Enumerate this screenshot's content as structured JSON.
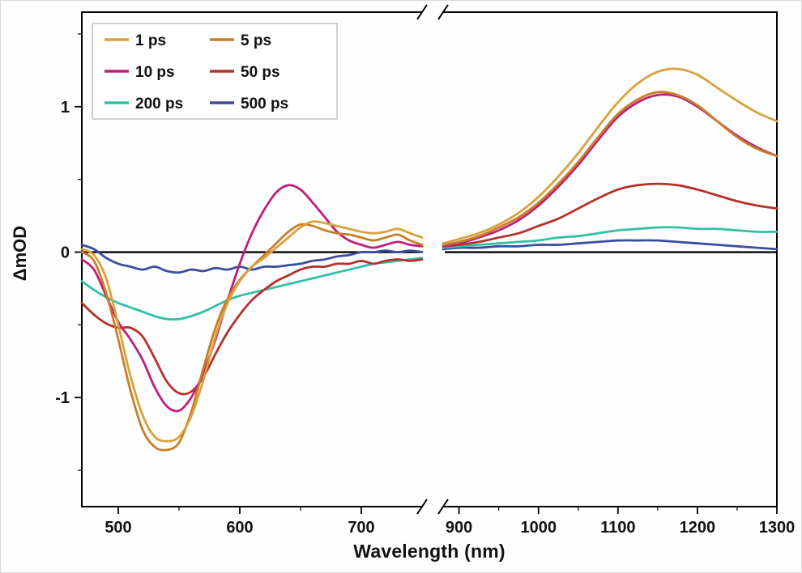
{
  "chart_data": {
    "type": "line",
    "title": "",
    "xlabel": "Wavelength (nm)",
    "ylabel": "ΔmOD",
    "ylim": [
      -1.75,
      1.65
    ],
    "y_major_ticks": [
      -1,
      0,
      1
    ],
    "y_minor_ticks": [
      -1.5,
      -0.5,
      0.5,
      1.5
    ],
    "zero_line": true,
    "axis_break": true,
    "legend": {
      "position": "top-left",
      "columns": 2
    },
    "panels": [
      {
        "xlim": [
          470,
          750
        ],
        "x_major_ticks": [
          500,
          600,
          700
        ],
        "x_minor_ticks": [
          550,
          650
        ],
        "x": [
          470,
          480,
          490,
          500,
          510,
          520,
          530,
          540,
          550,
          560,
          570,
          580,
          590,
          600,
          610,
          620,
          630,
          640,
          650,
          660,
          670,
          680,
          690,
          700,
          710,
          720,
          730,
          740,
          750
        ]
      },
      {
        "xlim": [
          880,
          1300
        ],
        "x_major_ticks": [
          900,
          1000,
          1100,
          1200,
          1300
        ],
        "x_minor_ticks": [
          950,
          1050,
          1150,
          1250
        ],
        "x": [
          880,
          900,
          925,
          950,
          975,
          1000,
          1025,
          1050,
          1075,
          1100,
          1125,
          1150,
          1175,
          1200,
          1225,
          1250,
          1275,
          1300
        ]
      }
    ],
    "series": [
      {
        "name": "1 ps",
        "color": "#D9A13C",
        "y_left": [
          0.02,
          -0.02,
          -0.18,
          -0.5,
          -0.85,
          -1.12,
          -1.27,
          -1.3,
          -1.27,
          -1.13,
          -0.88,
          -0.58,
          -0.35,
          -0.2,
          -0.1,
          -0.04,
          0.03,
          0.1,
          0.17,
          0.21,
          0.2,
          0.18,
          0.16,
          0.14,
          0.13,
          0.14,
          0.16,
          0.13,
          0.1
        ],
        "y_right": [
          0.06,
          0.09,
          0.13,
          0.19,
          0.27,
          0.38,
          0.52,
          0.68,
          0.86,
          1.03,
          1.16,
          1.24,
          1.26,
          1.22,
          1.13,
          1.04,
          0.96,
          0.9
        ]
      },
      {
        "name": "5 ps",
        "color": "#C87E28",
        "y_left": [
          0.0,
          -0.06,
          -0.28,
          -0.6,
          -0.95,
          -1.22,
          -1.34,
          -1.36,
          -1.31,
          -1.1,
          -0.8,
          -0.52,
          -0.32,
          -0.19,
          -0.1,
          -0.02,
          0.06,
          0.14,
          0.19,
          0.18,
          0.15,
          0.13,
          0.12,
          0.1,
          0.08,
          0.1,
          0.12,
          0.08,
          0.05
        ],
        "y_right": [
          0.05,
          0.07,
          0.11,
          0.17,
          0.24,
          0.34,
          0.47,
          0.62,
          0.79,
          0.95,
          1.05,
          1.1,
          1.08,
          1.01,
          0.9,
          0.79,
          0.71,
          0.66
        ]
      },
      {
        "name": "10 ps",
        "color": "#BE1E78",
        "y_left": [
          -0.05,
          -0.12,
          -0.3,
          -0.48,
          -0.6,
          -0.74,
          -0.93,
          -1.06,
          -1.09,
          -1.0,
          -0.83,
          -0.6,
          -0.33,
          -0.08,
          0.13,
          0.29,
          0.41,
          0.46,
          0.43,
          0.34,
          0.24,
          0.14,
          0.08,
          0.05,
          0.03,
          0.05,
          0.07,
          0.05,
          0.04
        ],
        "y_right": [
          0.04,
          0.06,
          0.1,
          0.15,
          0.22,
          0.32,
          0.45,
          0.6,
          0.77,
          0.93,
          1.03,
          1.08,
          1.07,
          1.0,
          0.9,
          0.8,
          0.72,
          0.66
        ]
      },
      {
        "name": "50 ps",
        "color": "#B5312B",
        "y_left": [
          -0.35,
          -0.43,
          -0.49,
          -0.52,
          -0.52,
          -0.58,
          -0.73,
          -0.89,
          -0.97,
          -0.96,
          -0.86,
          -0.7,
          -0.55,
          -0.43,
          -0.33,
          -0.26,
          -0.2,
          -0.16,
          -0.12,
          -0.1,
          -0.1,
          -0.08,
          -0.08,
          -0.06,
          -0.08,
          -0.06,
          -0.05,
          -0.06,
          -0.05
        ],
        "y_right": [
          0.04,
          0.05,
          0.07,
          0.1,
          0.13,
          0.18,
          0.23,
          0.3,
          0.37,
          0.43,
          0.46,
          0.47,
          0.46,
          0.43,
          0.39,
          0.35,
          0.32,
          0.3
        ]
      },
      {
        "name": "200 ps",
        "color": "#34BFA4",
        "y_left": [
          -0.2,
          -0.26,
          -0.31,
          -0.35,
          -0.38,
          -0.41,
          -0.44,
          -0.46,
          -0.46,
          -0.44,
          -0.41,
          -0.37,
          -0.33,
          -0.3,
          -0.28,
          -0.26,
          -0.24,
          -0.22,
          -0.2,
          -0.18,
          -0.16,
          -0.14,
          -0.12,
          -0.1,
          -0.08,
          -0.07,
          -0.06,
          -0.05,
          -0.04
        ],
        "y_right": [
          0.03,
          0.04,
          0.05,
          0.06,
          0.07,
          0.08,
          0.1,
          0.11,
          0.13,
          0.15,
          0.16,
          0.17,
          0.17,
          0.16,
          0.16,
          0.15,
          0.14,
          0.14
        ]
      },
      {
        "name": "500 ps",
        "color": "#3A4DA0",
        "y_left": [
          0.05,
          0.02,
          -0.04,
          -0.08,
          -0.1,
          -0.12,
          -0.1,
          -0.13,
          -0.14,
          -0.12,
          -0.13,
          -0.11,
          -0.12,
          -0.1,
          -0.12,
          -0.1,
          -0.1,
          -0.09,
          -0.08,
          -0.06,
          -0.05,
          -0.03,
          -0.02,
          0.0,
          0.0,
          0.01,
          0.0,
          0.01,
          0.0
        ],
        "y_right": [
          0.02,
          0.03,
          0.03,
          0.04,
          0.04,
          0.05,
          0.05,
          0.06,
          0.07,
          0.08,
          0.08,
          0.08,
          0.07,
          0.06,
          0.05,
          0.04,
          0.03,
          0.02
        ]
      }
    ]
  },
  "colors": {
    "axis": "#000000",
    "tick_label": "#111111",
    "legend_border": "#b5b5b5",
    "background": "#ffffff"
  }
}
